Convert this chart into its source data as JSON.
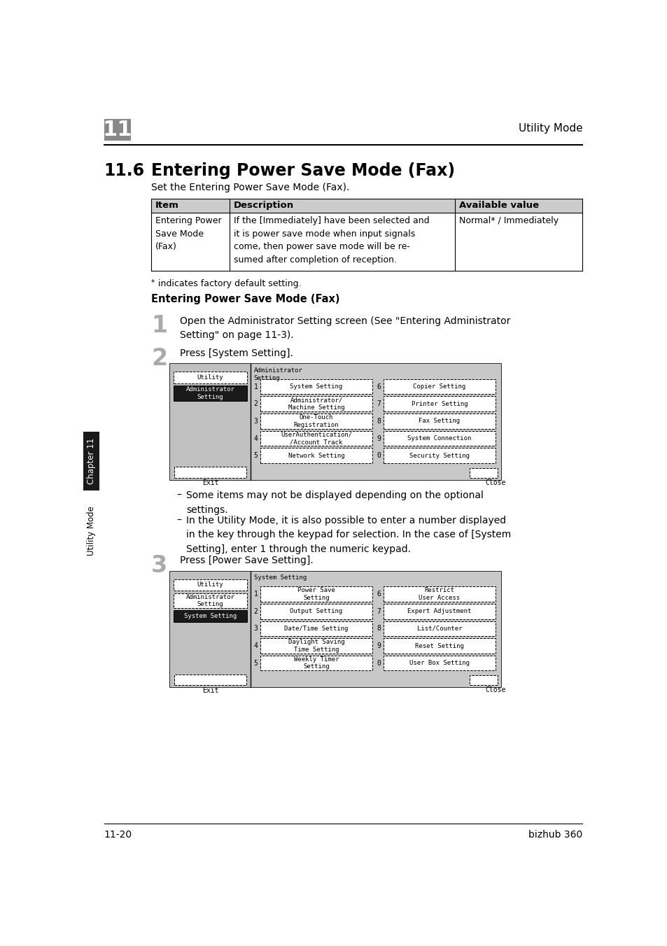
{
  "page_title": "Utility Mode",
  "chapter_number": "11",
  "section_number": "11.6",
  "section_title": "Entering Power Save Mode (Fax)",
  "section_subtitle": "Set the Entering Power Save Mode (Fax).",
  "table_headers": [
    "Item",
    "Description",
    "Available value"
  ],
  "table_row_item": "Entering Power\nSave Mode\n(Fax)",
  "table_row_desc": "If the [Immediately] have been selected and\nit is power save mode when input signals\ncome, then power save mode will be re-\nsumed after completion of reception.",
  "table_row_value": "Normal* / Immediately",
  "footnote_star": "*",
  "footnote_text": " indicates factory default setting.",
  "subsection_title": "Entering Power Save Mode (Fax)",
  "step1_number": "1",
  "step1_text": "Open the Administrator Setting screen (See \"Entering Administrator\nSetting\" on page 11-3).",
  "step2_number": "2",
  "step2_text": "Press [System Setting].",
  "screen1_buttons_left": [
    {
      "num": "1",
      "label": "System Setting"
    },
    {
      "num": "2",
      "label": "Administrator/\nMachine Setting"
    },
    {
      "num": "3",
      "label": "One-Touch\nRegistration"
    },
    {
      "num": "4",
      "label": "UserAuthentication/\n/Account Track"
    },
    {
      "num": "5",
      "label": "Network Setting"
    }
  ],
  "screen1_buttons_right": [
    {
      "num": "6",
      "label": "Copier Setting"
    },
    {
      "num": "7",
      "label": "Printer Setting"
    },
    {
      "num": "8",
      "label": "Fax Setting"
    },
    {
      "num": "9",
      "label": "System Connection"
    },
    {
      "num": "0",
      "label": "Security Setting"
    }
  ],
  "bullet1": "Some items may not be displayed depending on the optional\nsettings.",
  "bullet2": "In the Utility Mode, it is also possible to enter a number displayed\nin the key through the keypad for selection. In the case of [System\nSetting], enter 1 through the numeric keypad.",
  "step3_number": "3",
  "step3_text": "Press [Power Save Setting].",
  "screen2_buttons_left": [
    {
      "num": "1",
      "label": "Power Save\nSetting"
    },
    {
      "num": "2",
      "label": "Output Setting"
    },
    {
      "num": "3",
      "label": "Date/Time Setting"
    },
    {
      "num": "4",
      "label": "Daylight Saving\nTime Setting"
    },
    {
      "num": "5",
      "label": "Weekly Timer\nSetting"
    }
  ],
  "screen2_buttons_right": [
    {
      "num": "6",
      "label": "Restrict\nUser Access"
    },
    {
      "num": "7",
      "label": "Expert Adjustment"
    },
    {
      "num": "8",
      "label": "List/Counter"
    },
    {
      "num": "9",
      "label": "Reset Setting"
    },
    {
      "num": "0",
      "label": "User Box Setting"
    }
  ],
  "footer_left": "11-20",
  "footer_right": "bizhub 360",
  "bg_color": "#ffffff",
  "table_header_bg": "#cccccc",
  "screen_outer_bg": "#aaaaaa",
  "screen_left_bg": "#bbbbbb",
  "screen_right_bg": "#cccccc",
  "sidebar_ch11_bg": "#1a1a1a",
  "sidebar_utility_bg": "#ffffff"
}
